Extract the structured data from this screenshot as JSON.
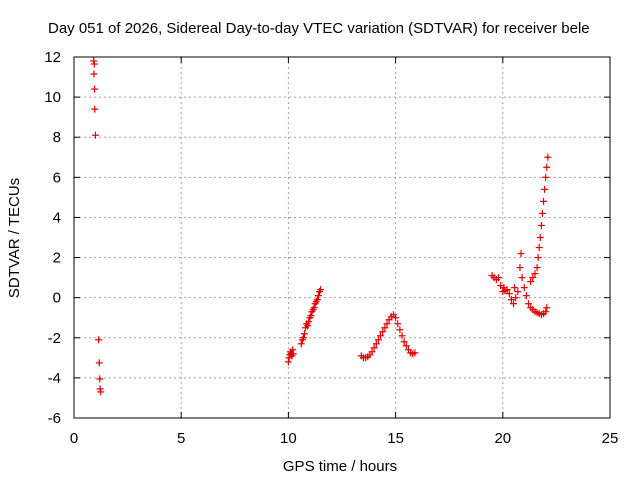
{
  "chart_data": {
    "type": "scatter",
    "title": "Day 051 of 2026, Sidereal Day-to-day VTEC variation (SDTVAR) for receiver bele",
    "xlabel": "GPS time / hours",
    "ylabel": "SDTVAR / TECUs",
    "xlim": [
      0,
      25
    ],
    "ylim": [
      -6,
      12
    ],
    "xticks": [
      0,
      5,
      10,
      15,
      20,
      25
    ],
    "yticks": [
      -6,
      -4,
      -2,
      0,
      2,
      4,
      6,
      8,
      10,
      12
    ],
    "grid": true,
    "marker": "+",
    "color": "#e00000",
    "series": [
      {
        "name": "SDTVAR",
        "points": [
          [
            0.92,
            11.8
          ],
          [
            0.95,
            11.65
          ],
          [
            0.93,
            11.15
          ],
          [
            0.96,
            10.4
          ],
          [
            0.97,
            9.4
          ],
          [
            1.0,
            8.1
          ],
          [
            1.15,
            -2.1
          ],
          [
            1.18,
            -3.25
          ],
          [
            1.2,
            -4.05
          ],
          [
            1.22,
            -4.55
          ],
          [
            1.25,
            -4.7
          ],
          [
            10.0,
            -3.2
          ],
          [
            10.03,
            -3.0
          ],
          [
            10.06,
            -2.85
          ],
          [
            10.1,
            -2.7
          ],
          [
            10.13,
            -2.8
          ],
          [
            10.17,
            -2.9
          ],
          [
            10.2,
            -2.6
          ],
          [
            10.23,
            -2.8
          ],
          [
            10.6,
            -2.3
          ],
          [
            10.65,
            -2.1
          ],
          [
            10.7,
            -2.0
          ],
          [
            10.75,
            -1.8
          ],
          [
            10.8,
            -1.5
          ],
          [
            10.85,
            -1.3
          ],
          [
            10.9,
            -1.4
          ],
          [
            10.95,
            -1.2
          ],
          [
            11.0,
            -1.0
          ],
          [
            11.05,
            -0.9
          ],
          [
            11.1,
            -0.7
          ],
          [
            11.15,
            -0.6
          ],
          [
            11.2,
            -0.5
          ],
          [
            11.25,
            -0.3
          ],
          [
            11.3,
            -0.2
          ],
          [
            11.35,
            -0.1
          ],
          [
            11.4,
            0.1
          ],
          [
            11.45,
            0.3
          ],
          [
            11.5,
            0.4
          ],
          [
            13.4,
            -2.9
          ],
          [
            13.5,
            -3.0
          ],
          [
            13.6,
            -3.0
          ],
          [
            13.7,
            -2.95
          ],
          [
            13.8,
            -2.85
          ],
          [
            13.9,
            -2.7
          ],
          [
            14.0,
            -2.5
          ],
          [
            14.1,
            -2.3
          ],
          [
            14.2,
            -2.1
          ],
          [
            14.3,
            -1.9
          ],
          [
            14.4,
            -1.7
          ],
          [
            14.5,
            -1.5
          ],
          [
            14.6,
            -1.3
          ],
          [
            14.7,
            -1.1
          ],
          [
            14.8,
            -0.95
          ],
          [
            14.9,
            -0.85
          ],
          [
            15.0,
            -1.0
          ],
          [
            15.1,
            -1.3
          ],
          [
            15.2,
            -1.6
          ],
          [
            15.3,
            -1.9
          ],
          [
            15.4,
            -2.2
          ],
          [
            15.5,
            -2.4
          ],
          [
            15.6,
            -2.6
          ],
          [
            15.7,
            -2.75
          ],
          [
            15.8,
            -2.8
          ],
          [
            15.9,
            -2.75
          ],
          [
            19.5,
            1.1
          ],
          [
            19.6,
            1.0
          ],
          [
            19.7,
            0.9
          ],
          [
            19.8,
            1.0
          ],
          [
            19.9,
            0.6
          ],
          [
            20.0,
            0.3
          ],
          [
            20.05,
            0.5
          ],
          [
            20.1,
            0.35
          ],
          [
            20.2,
            0.4
          ],
          [
            20.3,
            0.2
          ],
          [
            20.4,
            -0.1
          ],
          [
            20.5,
            -0.3
          ],
          [
            20.55,
            0.5
          ],
          [
            20.6,
            0.0
          ],
          [
            20.7,
            0.3
          ],
          [
            20.8,
            1.5
          ],
          [
            20.85,
            2.2
          ],
          [
            20.9,
            1.0
          ],
          [
            21.0,
            0.5
          ],
          [
            21.1,
            0.1
          ],
          [
            21.2,
            -0.3
          ],
          [
            21.3,
            -0.5
          ],
          [
            21.4,
            -0.6
          ],
          [
            21.5,
            -0.7
          ],
          [
            21.6,
            -0.75
          ],
          [
            21.7,
            -0.8
          ],
          [
            21.8,
            -0.85
          ],
          [
            21.9,
            -0.8
          ],
          [
            22.0,
            -0.7
          ],
          [
            22.05,
            -0.5
          ],
          [
            21.3,
            0.8
          ],
          [
            21.4,
            1.0
          ],
          [
            21.5,
            1.2
          ],
          [
            21.6,
            1.5
          ],
          [
            21.65,
            2.0
          ],
          [
            21.7,
            2.5
          ],
          [
            21.75,
            3.0
          ],
          [
            21.8,
            3.6
          ],
          [
            21.85,
            4.2
          ],
          [
            21.9,
            4.8
          ],
          [
            21.95,
            5.4
          ],
          [
            22.0,
            6.0
          ],
          [
            22.05,
            6.5
          ],
          [
            22.1,
            7.0
          ]
        ]
      }
    ]
  }
}
